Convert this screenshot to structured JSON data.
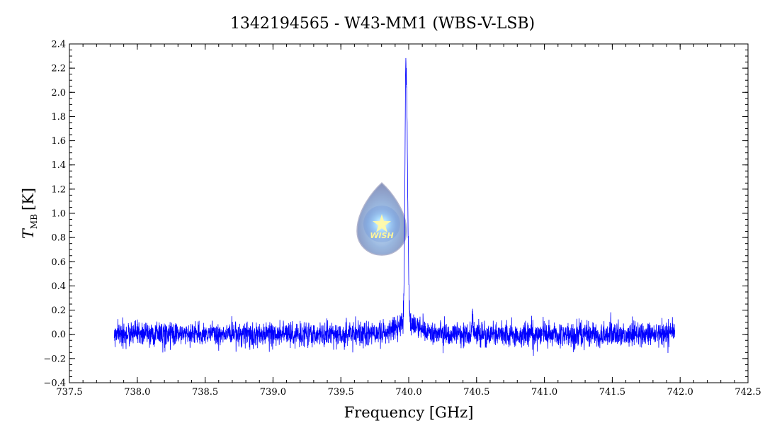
{
  "chart_data": {
    "type": "line",
    "title": "1342194565 - W43-MM1 (WBS-V-LSB)",
    "xlabel": "Frequency [GHz]",
    "ylabel_main": "T",
    "ylabel_sub": "MB",
    "ylabel_unit": "[K]",
    "xlim": [
      737.5,
      742.5
    ],
    "ylim": [
      -0.4,
      2.4
    ],
    "xticks": [
      "737.5",
      "738.0",
      "738.5",
      "739.0",
      "739.5",
      "740.0",
      "740.5",
      "741.0",
      "741.5",
      "742.0",
      "742.5"
    ],
    "yticks": [
      "−0.4",
      "−0.2",
      "0.0",
      "0.2",
      "0.4",
      "0.6",
      "0.8",
      "1.0",
      "1.2",
      "1.4",
      "1.6",
      "1.8",
      "2.0",
      "2.2",
      "2.4"
    ],
    "line_color": "#0000ff",
    "grid": false,
    "series": [
      {
        "x_range": [
          737.83,
          741.96
        ],
        "noise_rms": 0.05,
        "features": [
          {
            "center": 739.98,
            "peak": 2.24,
            "shape": "emission line"
          },
          {
            "center": 740.47,
            "peak": 0.22,
            "shape": "narrow emission line"
          }
        ]
      }
    ]
  },
  "watermark": {
    "text": "WISH",
    "icon": "water-drop-star-logo"
  }
}
